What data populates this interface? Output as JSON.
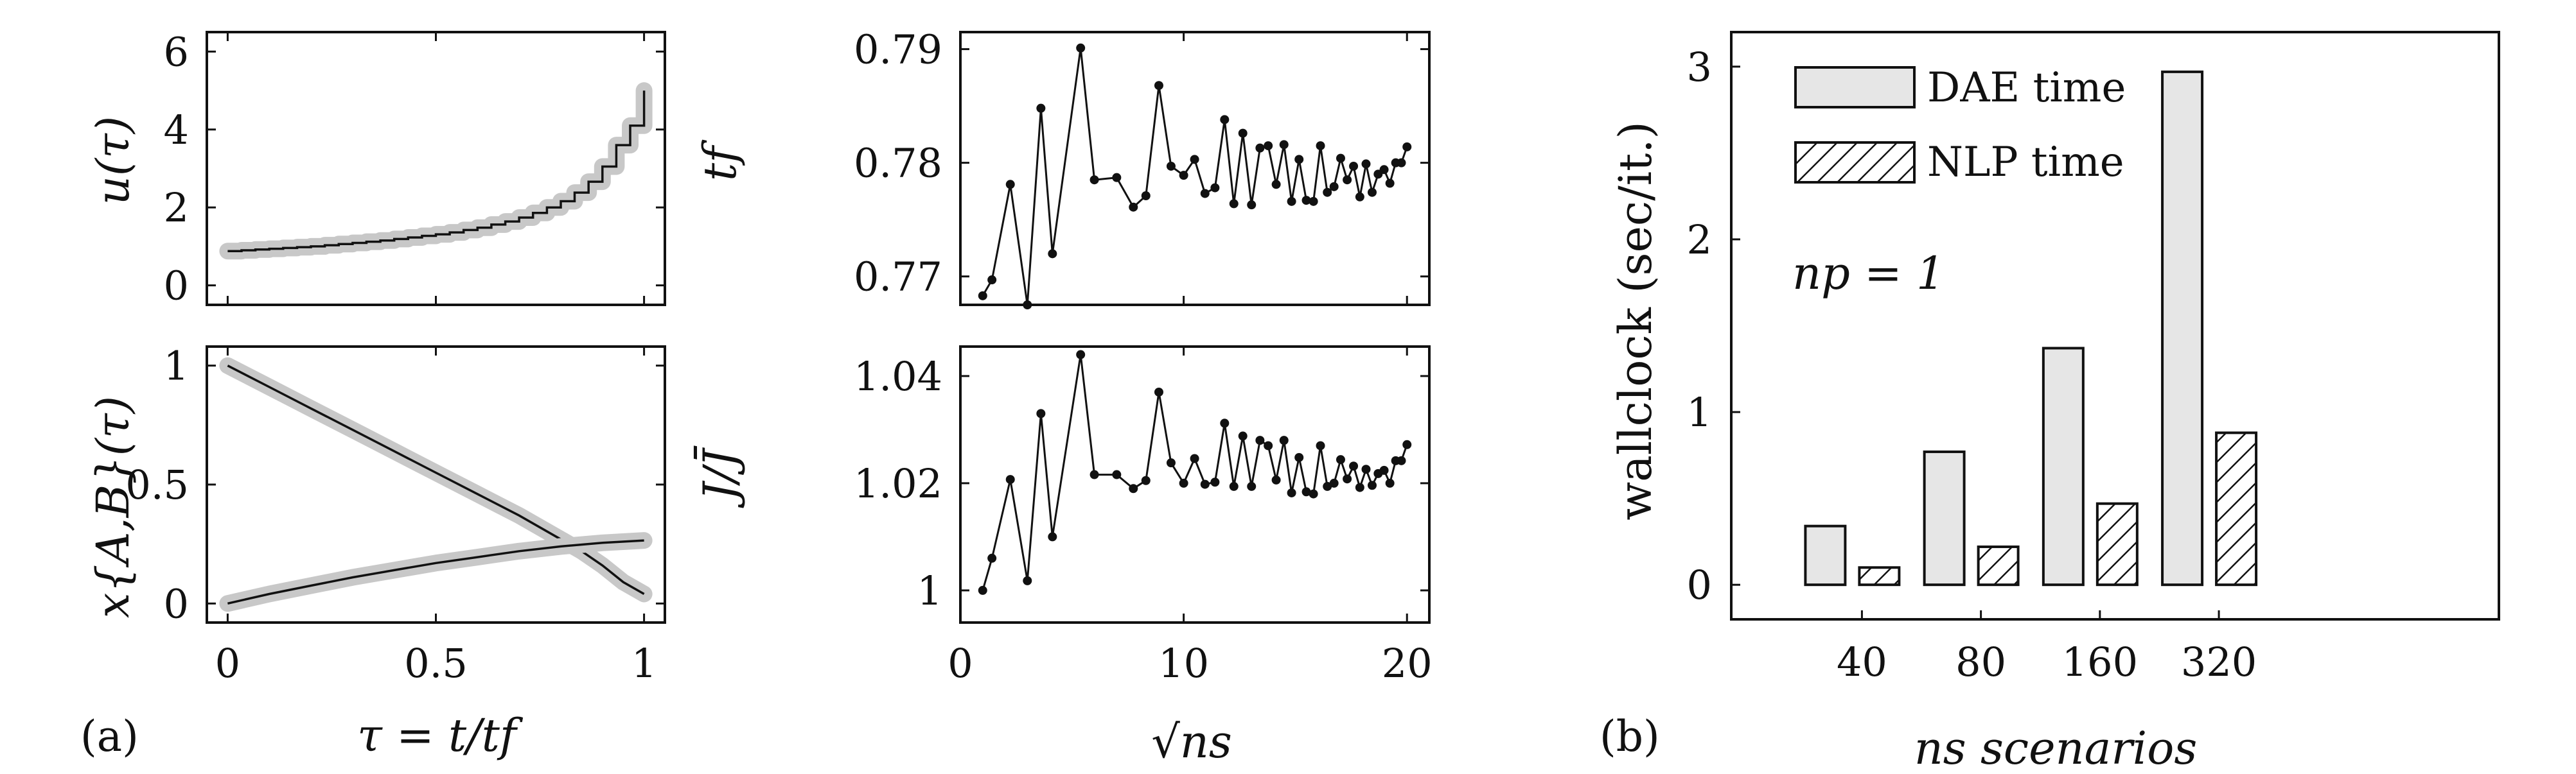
{
  "panel_labels": {
    "a": "(a)",
    "b": "(b)"
  },
  "chart_data": [
    {
      "id": "u",
      "type": "line",
      "ylabel": "u(τ)",
      "xlabel": "",
      "xlim": [
        -0.05,
        1.05
      ],
      "ylim": [
        -0.5,
        6.5
      ],
      "xticks": [
        0,
        0.5,
        1
      ],
      "xtick_labels": [
        "",
        "",
        ""
      ],
      "yticks": [
        0,
        2,
        4,
        6
      ],
      "ytick_labels": [
        "0",
        "2",
        "4",
        "6"
      ],
      "series": [
        {
          "name": "u step",
          "style": "step",
          "x": [
            0,
            0.0333,
            0.0667,
            0.1,
            0.1333,
            0.1667,
            0.2,
            0.2333,
            0.2667,
            0.3,
            0.3333,
            0.3667,
            0.4,
            0.4333,
            0.4667,
            0.5,
            0.5333,
            0.5667,
            0.6,
            0.6333,
            0.6667,
            0.7,
            0.7333,
            0.7667,
            0.8,
            0.8333,
            0.8667,
            0.9,
            0.9333,
            0.9667,
            1.0
          ],
          "y": [
            0.88,
            0.9,
            0.92,
            0.94,
            0.96,
            0.98,
            1.0,
            1.03,
            1.06,
            1.09,
            1.12,
            1.15,
            1.19,
            1.23,
            1.27,
            1.31,
            1.36,
            1.42,
            1.48,
            1.56,
            1.64,
            1.74,
            1.86,
            2.0,
            2.16,
            2.38,
            2.66,
            3.05,
            3.6,
            4.1,
            5.0
          ]
        }
      ]
    },
    {
      "id": "x",
      "type": "line",
      "ylabel": "x{A,B}(τ)",
      "xlabel": "τ = t/tf",
      "xlim": [
        -0.05,
        1.05
      ],
      "ylim": [
        -0.08,
        1.08
      ],
      "xticks": [
        0,
        0.5,
        1
      ],
      "xtick_labels": [
        "0",
        "0.5",
        "1"
      ],
      "yticks": [
        0,
        0.5,
        1
      ],
      "ytick_labels": [
        "0",
        "0.5",
        "1"
      ],
      "series": [
        {
          "name": "x_A",
          "x": [
            0,
            0.1,
            0.2,
            0.3,
            0.4,
            0.5,
            0.6,
            0.7,
            0.8,
            0.85,
            0.9,
            0.95,
            1.0
          ],
          "y": [
            1.0,
            0.91,
            0.82,
            0.73,
            0.64,
            0.55,
            0.46,
            0.37,
            0.27,
            0.22,
            0.16,
            0.09,
            0.04
          ]
        },
        {
          "name": "x_B",
          "x": [
            0,
            0.1,
            0.2,
            0.3,
            0.4,
            0.5,
            0.6,
            0.7,
            0.8,
            0.9,
            1.0
          ],
          "y": [
            0.0,
            0.04,
            0.075,
            0.11,
            0.14,
            0.17,
            0.195,
            0.22,
            0.24,
            0.255,
            0.265
          ]
        }
      ]
    },
    {
      "id": "tf",
      "type": "line",
      "ylabel": "tf",
      "xlabel": "",
      "xlim": [
        0,
        21
      ],
      "ylim": [
        0.7675,
        0.7915
      ],
      "xticks": [
        0,
        10,
        20
      ],
      "xtick_labels": [
        "",
        "",
        ""
      ],
      "yticks": [
        0.77,
        0.78,
        0.79
      ],
      "ytick_labels": [
        "0.77",
        "0.78",
        "0.79"
      ],
      "series": [
        {
          "name": "tf",
          "x": [
            1,
            1.414,
            2.236,
            3.0,
            3.606,
            4.123,
            5.385,
            6.0,
            7.0,
            7.746,
            8.307,
            8.888,
            9.434,
            10.0,
            10.488,
            10.954,
            11.402,
            11.832,
            12.247,
            12.649,
            13.038,
            13.416,
            13.784,
            14.142,
            14.491,
            14.832,
            15.166,
            15.492,
            15.811,
            16.125,
            16.432,
            16.733,
            17.029,
            17.321,
            17.607,
            17.889,
            18.166,
            18.439,
            18.708,
            18.974,
            19.235,
            19.494,
            19.748,
            20.0
          ],
          "y": [
            0.7683,
            0.7697,
            0.7781,
            0.7675,
            0.7848,
            0.772,
            0.7901,
            0.7785,
            0.7787,
            0.7761,
            0.7771,
            0.7868,
            0.7797,
            0.7789,
            0.7803,
            0.7773,
            0.7778,
            0.7838,
            0.7764,
            0.7826,
            0.7763,
            0.7813,
            0.7815,
            0.7781,
            0.7816,
            0.7766,
            0.7803,
            0.7767,
            0.7766,
            0.7815,
            0.7774,
            0.7779,
            0.7804,
            0.7785,
            0.7797,
            0.777,
            0.7799,
            0.7774,
            0.779,
            0.7794,
            0.7782,
            0.78,
            0.78,
            0.7814
          ]
        }
      ]
    },
    {
      "id": "J",
      "type": "line",
      "ylabel": "J/J̄",
      "xlabel": "√ns",
      "xlim": [
        0,
        21
      ],
      "ylim": [
        0.994,
        1.0455
      ],
      "xticks": [
        0,
        10,
        20
      ],
      "xtick_labels": [
        "0",
        "10",
        "20"
      ],
      "yticks": [
        1,
        1.02,
        1.04
      ],
      "ytick_labels": [
        "1",
        "1.02",
        "1.04"
      ],
      "series": [
        {
          "name": "J",
          "x": [
            1,
            1.414,
            2.236,
            3.0,
            3.606,
            4.123,
            5.385,
            6.0,
            7.0,
            7.746,
            8.307,
            8.888,
            9.434,
            10.0,
            10.488,
            10.954,
            11.402,
            11.832,
            12.247,
            12.649,
            13.038,
            13.416,
            13.784,
            14.142,
            14.491,
            14.832,
            15.166,
            15.492,
            15.811,
            16.125,
            16.432,
            16.733,
            17.029,
            17.321,
            17.607,
            17.889,
            18.166,
            18.439,
            18.708,
            18.974,
            19.235,
            19.494,
            19.748,
            20.0
          ],
          "y": [
            1.0,
            1.006,
            1.0207,
            1.0018,
            1.033,
            1.01,
            1.044,
            1.0216,
            1.0216,
            1.019,
            1.0205,
            1.037,
            1.0238,
            1.02,
            1.0246,
            1.0198,
            1.0202,
            1.0312,
            1.0194,
            1.0288,
            1.0194,
            1.028,
            1.027,
            1.0206,
            1.028,
            1.0182,
            1.0248,
            1.0184,
            1.018,
            1.027,
            1.0194,
            1.02,
            1.0244,
            1.0208,
            1.0232,
            1.0192,
            1.0226,
            1.0196,
            1.0218,
            1.0224,
            1.02,
            1.0242,
            1.0242,
            1.0272
          ]
        }
      ]
    },
    {
      "id": "wallclock",
      "type": "bar",
      "title": "",
      "xlabel": "ns scenarios",
      "ylabel": "wallclock (sec/it.)",
      "categories": [
        "40",
        "80",
        "160",
        "320"
      ],
      "ylim": [
        -0.2,
        3.2
      ],
      "yticks": [
        0,
        1,
        2,
        3
      ],
      "ytick_labels": [
        "0",
        "1",
        "2",
        "3"
      ],
      "legend_position": "top-left",
      "annotation": "np = 1",
      "series": [
        {
          "name": "DAE time",
          "pattern": "solid",
          "values": [
            0.34,
            0.77,
            1.37,
            2.97
          ]
        },
        {
          "name": "NLP time",
          "pattern": "hatched",
          "values": [
            0.1,
            0.22,
            0.47,
            0.88
          ]
        }
      ]
    }
  ]
}
